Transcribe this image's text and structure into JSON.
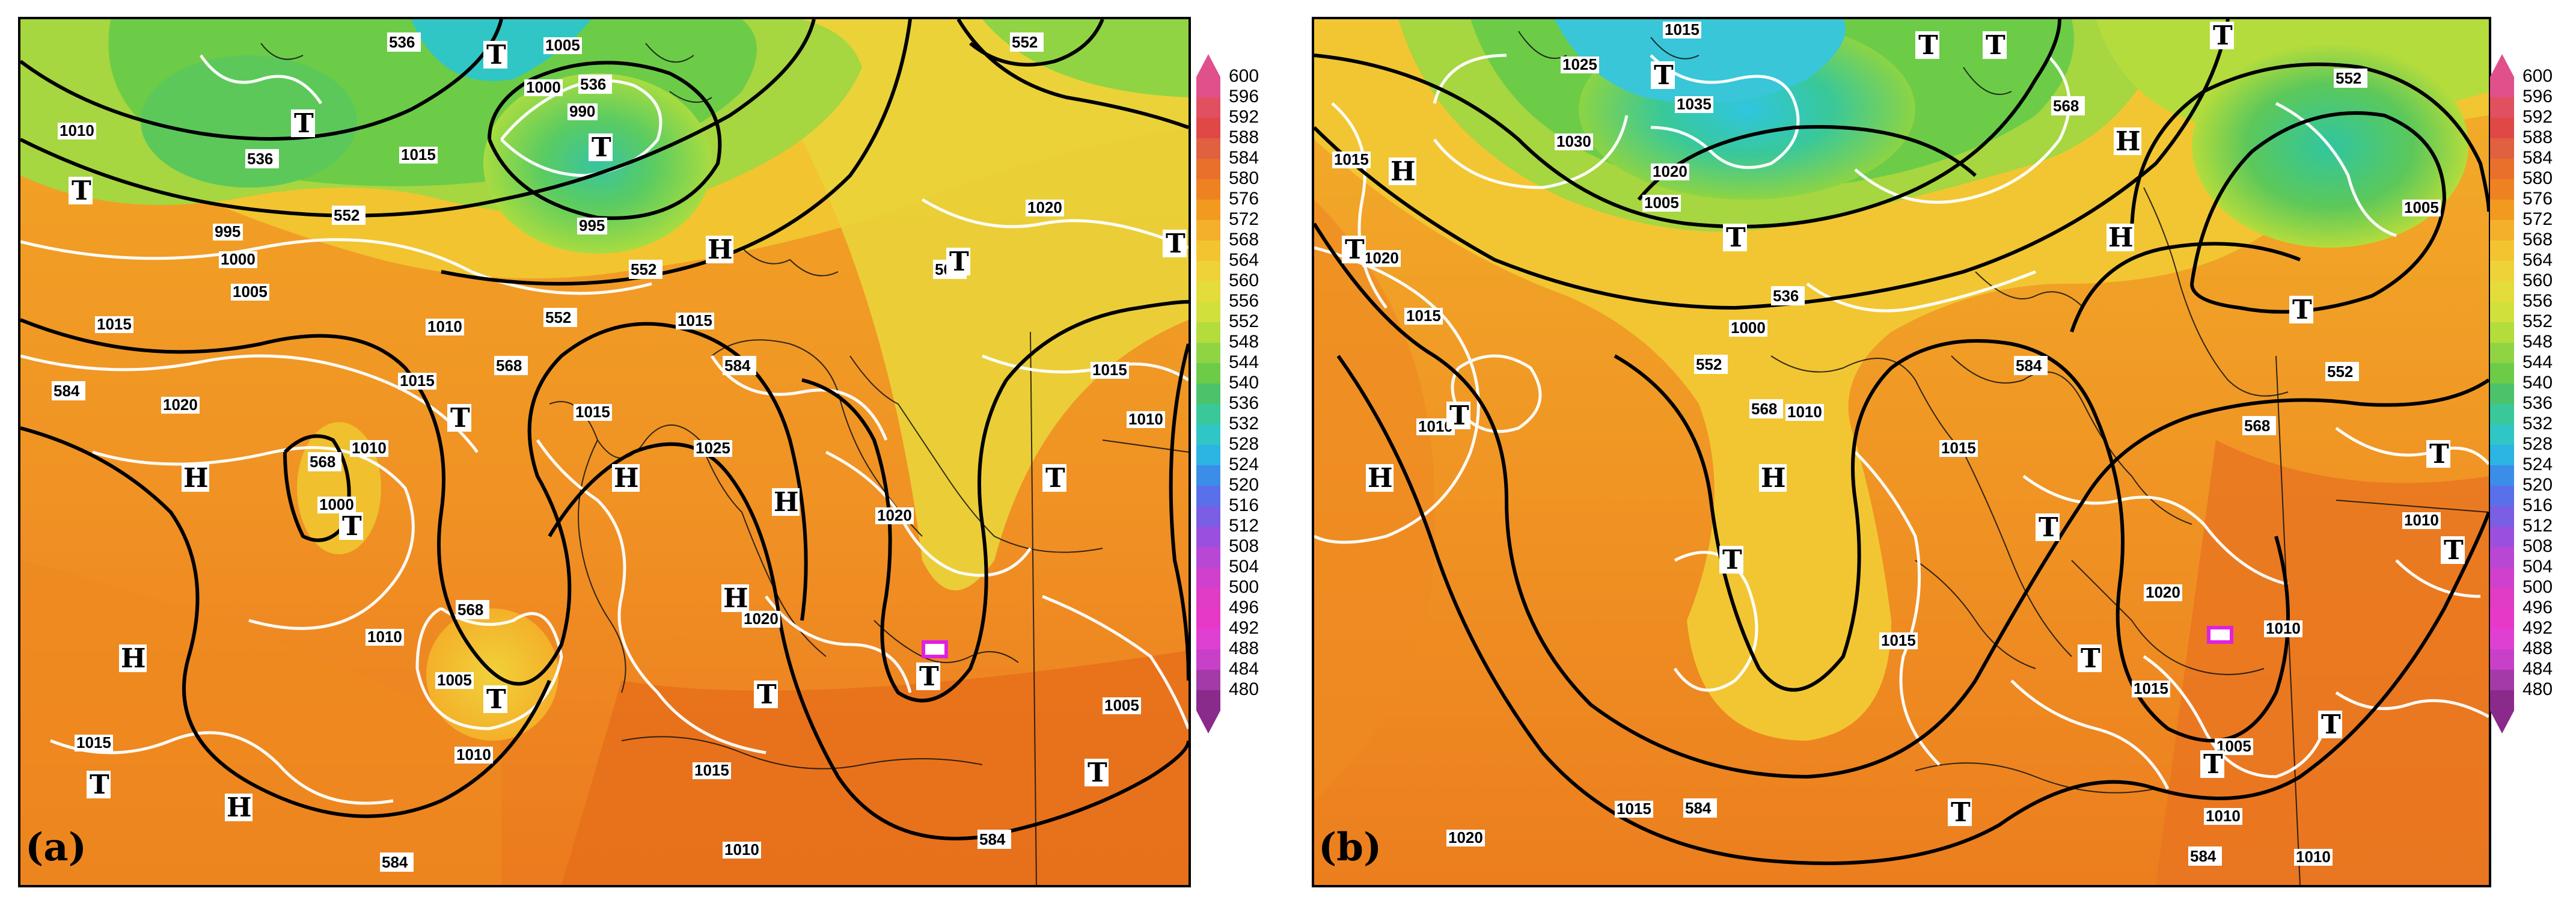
{
  "panels": [
    {
      "letter": "(a)",
      "gph_labels": [
        "536",
        "536",
        "536",
        "552",
        "552",
        "552",
        "568",
        "568",
        "568",
        "568",
        "584",
        "584",
        "584",
        "584",
        "552"
      ],
      "slp_labels": [
        "1005",
        "1000",
        "990",
        "995",
        "1015",
        "1010",
        "1000",
        "1005",
        "995",
        "1010",
        "1015",
        "1020",
        "1015",
        "1010",
        "1000",
        "1015",
        "1020",
        "1025",
        "1015",
        "1020",
        "1010",
        "1005",
        "1010",
        "1015",
        "1010",
        "1020",
        "1015",
        "1005",
        "1010",
        "1015"
      ],
      "lows": [
        "T",
        "T",
        "T",
        "T",
        "T",
        "T",
        "T",
        "T",
        "T",
        "T",
        "T",
        "T",
        "T",
        "T"
      ],
      "highs": [
        "H",
        "H",
        "H",
        "H",
        "H",
        "H",
        "H"
      ]
    },
    {
      "letter": "(b)",
      "gph_labels": [
        "536",
        "552",
        "552",
        "552",
        "568",
        "568",
        "568",
        "584",
        "584",
        "584"
      ],
      "slp_labels": [
        "1015",
        "1025",
        "1035",
        "1030",
        "1020",
        "1005",
        "1000",
        "1010",
        "1015",
        "1020",
        "1010",
        "1015",
        "1005",
        "1015",
        "1010",
        "1015",
        "1020",
        "1015",
        "1010",
        "1005",
        "1010",
        "1020",
        "1015",
        "1010"
      ],
      "lows": [
        "T",
        "T",
        "T",
        "T",
        "T",
        "T",
        "T",
        "T",
        "T",
        "T",
        "T",
        "T",
        "T",
        "T",
        "T",
        "T"
      ],
      "highs": [
        "H",
        "H",
        "H",
        "H",
        "H"
      ]
    }
  ],
  "colorbar": {
    "labels": [
      "600",
      "596",
      "592",
      "588",
      "584",
      "580",
      "576",
      "572",
      "568",
      "564",
      "560",
      "556",
      "552",
      "548",
      "544",
      "540",
      "536",
      "532",
      "528",
      "524",
      "520",
      "516",
      "512",
      "508",
      "504",
      "500",
      "496",
      "492",
      "488",
      "484",
      "480"
    ],
    "colors": [
      "#e0508a",
      "#e05060",
      "#e04848",
      "#e06040",
      "#e8702a",
      "#ee8220",
      "#f29a20",
      "#f4b02a",
      "#f4c430",
      "#eed238",
      "#e4dc3a",
      "#d2e03c",
      "#b4dc3c",
      "#90d444",
      "#6ccc48",
      "#4cc26a",
      "#38c89a",
      "#30c6c6",
      "#2cb4e2",
      "#3a8ee8",
      "#5a70ea",
      "#7a5ee4",
      "#9a50dc",
      "#b848d4",
      "#d040cc",
      "#e03cc4",
      "#e838c8",
      "#e040d2",
      "#c840c8",
      "#a43aa8",
      "#8a2a8a"
    ]
  }
}
